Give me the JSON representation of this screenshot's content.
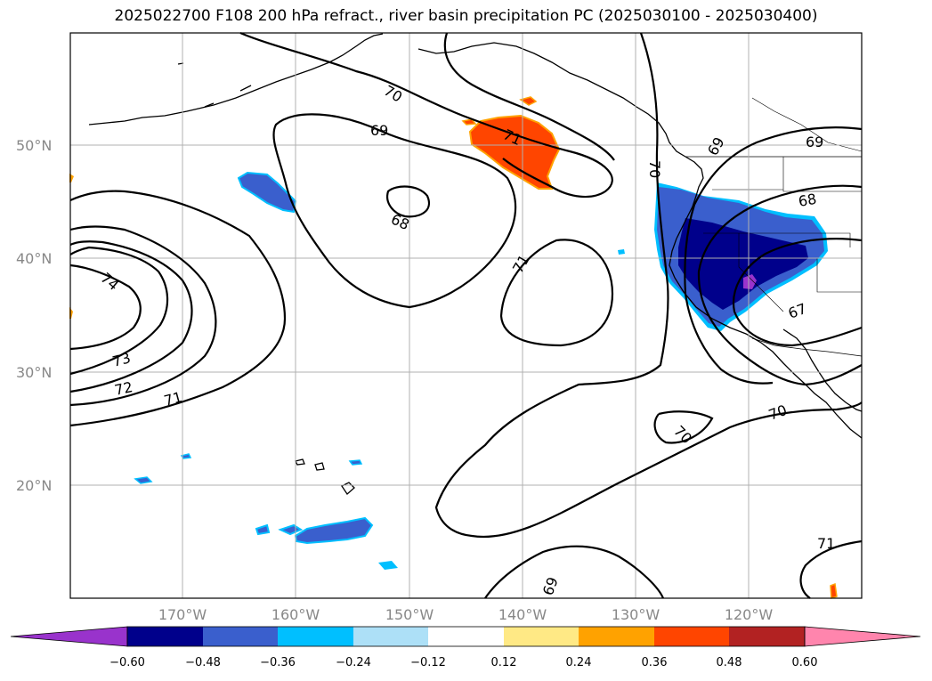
{
  "title": "2025022700 F108 200 hPa refract., river basin precipitation PC (2025030100 - 2025030400)",
  "map": {
    "projection": "PlateCarree",
    "lon_range": [
      -180,
      -110
    ],
    "lat_range": [
      10,
      60
    ],
    "lat_labels": [
      "50°N",
      "40°N",
      "30°N",
      "20°N"
    ],
    "lon_labels": [
      "170°W",
      "160°W",
      "150°W",
      "140°W",
      "130°W",
      "120°W"
    ],
    "contour_labels": [
      "70",
      "69",
      "68",
      "71",
      "74",
      "73",
      "72",
      "71",
      "71",
      "70",
      "69",
      "68",
      "67",
      "70",
      "70",
      "69",
      "71",
      "69"
    ]
  },
  "colorbar": {
    "tick_labels": [
      "−0.60",
      "−0.48",
      "−0.36",
      "−0.24",
      "−0.12",
      "0.12",
      "0.24",
      "0.36",
      "0.48",
      "0.60"
    ],
    "colors": [
      "#9933cc",
      "#00008b",
      "#3a5fcd",
      "#00bfff",
      "#ade0f7",
      "#ffffff",
      "#ffe985",
      "#ffa200",
      "#ff4500",
      "#b22222",
      "#ff85ad"
    ]
  }
}
